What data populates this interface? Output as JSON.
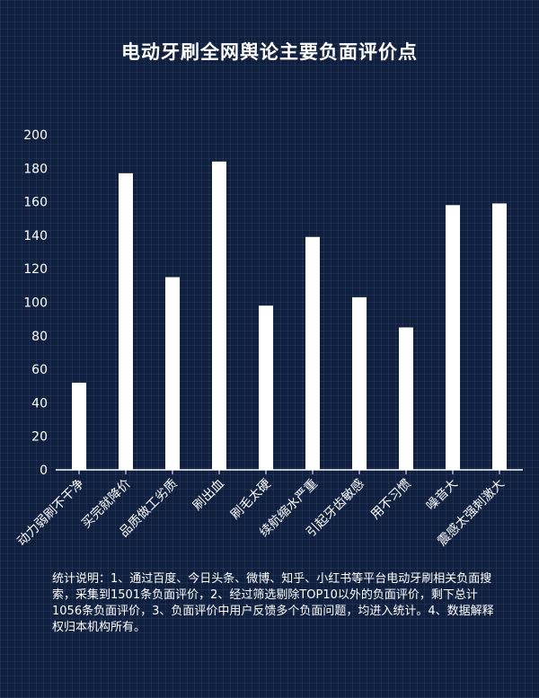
{
  "chart_data": {
    "type": "bar",
    "title": "电动牙刷全网舆论主要负面评价点",
    "categories": [
      "动力弱刷不干净",
      "买完就降价",
      "品质做工劣质",
      "刷出血",
      "刷毛太硬",
      "续航缩水严重",
      "引起牙齿敏感",
      "用不习惯",
      "噪音大",
      "震感太强刺激大"
    ],
    "values": [
      52,
      177,
      115,
      184,
      98,
      139,
      103,
      85,
      158,
      159
    ],
    "ylim": [
      0,
      200
    ],
    "yticks": [
      0,
      20,
      40,
      60,
      80,
      100,
      120,
      140,
      160,
      180,
      200
    ],
    "grid": false,
    "legend": "none",
    "colors": {
      "bar": "#ffffff",
      "background": "#0f1f3d",
      "text": "#ffffff"
    }
  },
  "note": "统计说明：1、通过百度、今日头条、微博、知乎、小红书等平台电动牙刷相关负面搜索，采集到1501条负面评价，2、经过筛选剔除TOP10以外的负面评价，剩下总计1056条负面评价，3、负面评价中用户反馈多个负面问题，均进入统计。4、数据解释权归本机构所有。"
}
